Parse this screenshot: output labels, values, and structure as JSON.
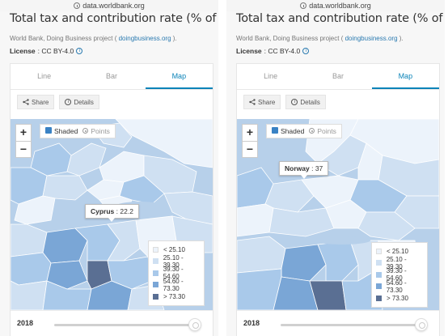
{
  "browser": {
    "url": "data.worldbank.org"
  },
  "chart": {
    "title": "Total tax and contribution rate (% of profit)",
    "source_prefix": "World Bank, Doing Business project (",
    "source_link": "doingbusiness.org",
    "source_suffix": ").",
    "license_label": "License",
    "license_value": ": CC BY-4.0"
  },
  "tabs": [
    "Line",
    "Bar",
    "Map"
  ],
  "active_tab": "Map",
  "toolbar": {
    "share": "Share",
    "details": "Details"
  },
  "zoom": {
    "in": "+",
    "out": "−"
  },
  "mode_switch": {
    "shaded": "Shaded",
    "points": "Points",
    "selected": "Shaded"
  },
  "legend": [
    {
      "label": "< 25.10",
      "color": "#ecf3fb"
    },
    {
      "label": "25.10 - 39.30",
      "color": "#cfe0f2"
    },
    {
      "label": "39.30 - 54.60",
      "color": "#a9c9ea"
    },
    {
      "label": "54.60 - 73.30",
      "color": "#7aa6d6"
    },
    {
      "label": "> 73.30",
      "color": "#5a6f93"
    }
  ],
  "panels": [
    {
      "tooltip_name": "Cyprus",
      "tooltip_value": ": 22.2"
    },
    {
      "tooltip_name": "Norway",
      "tooltip_value": ": 37"
    }
  ],
  "year": "2018"
}
